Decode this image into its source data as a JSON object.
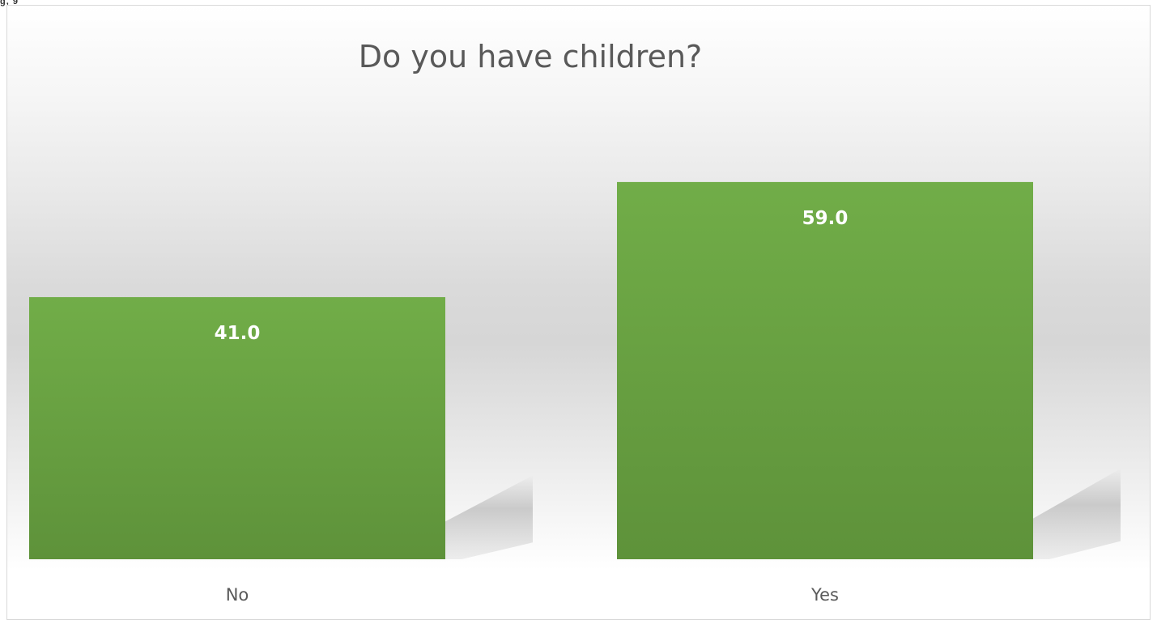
{
  "corner_label": "g, 9",
  "chart_data": {
    "type": "bar",
    "title": "Do you have children?",
    "categories": [
      "No",
      "Yes"
    ],
    "values": [
      41.0,
      59.0
    ],
    "value_labels": [
      "41.0",
      "59.0"
    ],
    "xlabel": "",
    "ylabel": "",
    "ylim": [
      0,
      65
    ],
    "grid": false,
    "legend": "none",
    "bar_color": "#70ad47"
  }
}
